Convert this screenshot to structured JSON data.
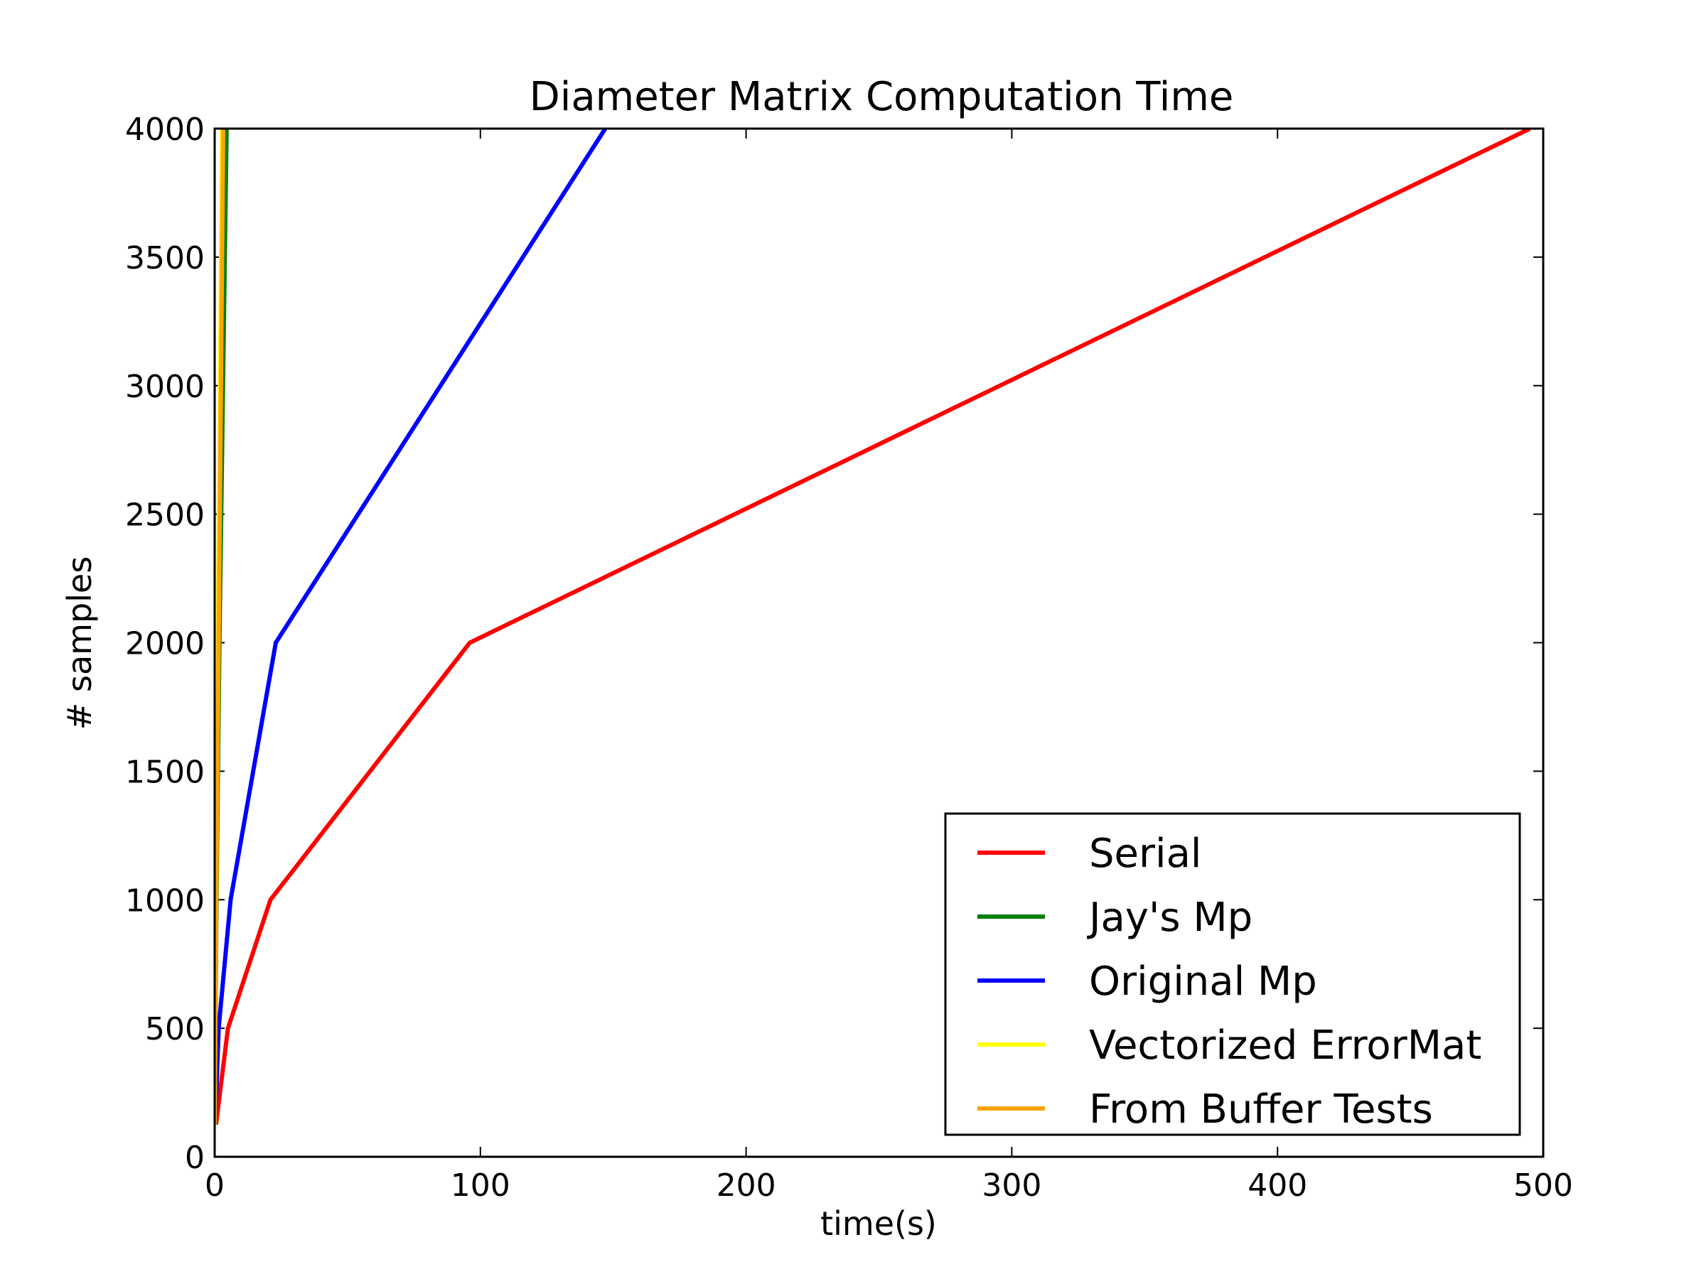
{
  "chart_data": {
    "type": "line",
    "title": "Diameter Matrix Computation Time",
    "xlabel": "time(s)",
    "ylabel": "# samples",
    "xlim": [
      0,
      500
    ],
    "ylim": [
      0,
      4000
    ],
    "xticks": [
      0,
      100,
      200,
      300,
      400,
      500
    ],
    "yticks": [
      0,
      500,
      1000,
      1500,
      2000,
      2500,
      3000,
      3500,
      4000
    ],
    "grid": false,
    "legend_position": "lower-right",
    "series": [
      {
        "name": "Serial",
        "color": "#ff0000",
        "x": [
          0.5,
          5,
          21,
          96,
          495
        ],
        "y": [
          125,
          500,
          1000,
          2000,
          4000
        ]
      },
      {
        "name": "Jay's Mp",
        "color": "#008000",
        "x": [
          0.05,
          0.3,
          0.7,
          1.8,
          4.5
        ],
        "y": [
          125,
          500,
          1000,
          2000,
          4000
        ]
      },
      {
        "name": "Original Mp",
        "color": "#0000ff",
        "x": [
          0.2,
          1.5,
          6,
          23,
          147
        ],
        "y": [
          125,
          500,
          1000,
          2000,
          4000
        ]
      },
      {
        "name": "Vectorized ErrorMat",
        "color": "#ffff00",
        "x": [
          0.03,
          0.2,
          0.5,
          1.2,
          2.8
        ],
        "y": [
          125,
          500,
          1000,
          2000,
          4000
        ]
      },
      {
        "name": "From Buffer Tests",
        "color": "#ffa500",
        "x": [
          0.04,
          0.25,
          0.6,
          1.5,
          3.2
        ],
        "y": [
          125,
          500,
          1000,
          2000,
          4000
        ]
      }
    ]
  }
}
